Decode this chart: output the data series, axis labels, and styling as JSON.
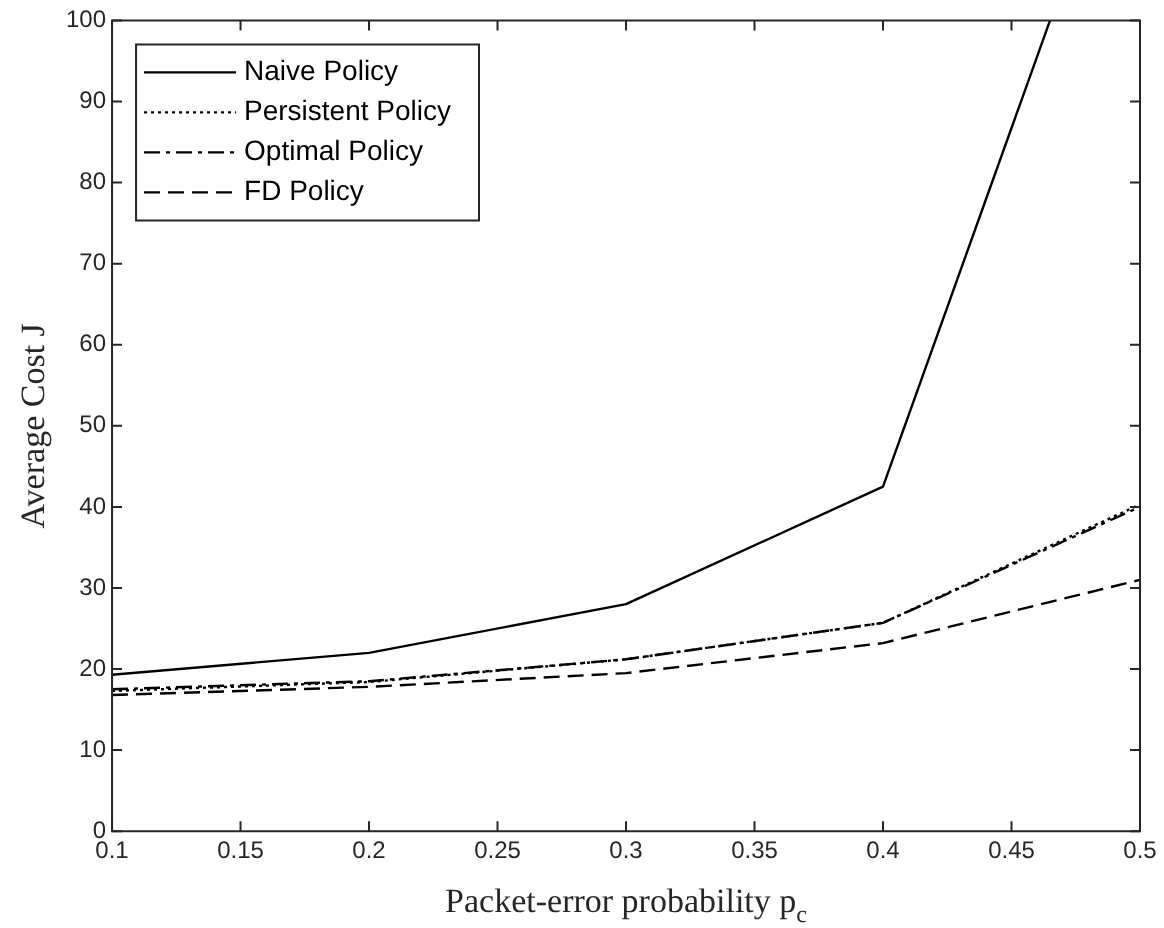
{
  "chart_data": {
    "type": "line",
    "xlabel": "Packet-error probability p$_{c}$",
    "ylabel": "Average Cost J",
    "xlim": [
      0.1,
      0.5
    ],
    "xticks": [
      0.1,
      0.15,
      0.2,
      0.25,
      0.3,
      0.35,
      0.4,
      0.45,
      0.5
    ],
    "ylim": [
      0,
      100
    ],
    "yticks": [
      0,
      10,
      20,
      30,
      40,
      50,
      60,
      70,
      80,
      90,
      100
    ],
    "x": [
      0.1,
      0.2,
      0.3,
      0.4,
      0.5
    ],
    "grid": false,
    "legend": "top left",
    "marker": "none",
    "series": [
      {
        "name": "Naive Policy",
        "color": "#000000",
        "line_style": "solid",
        "x": [
          0.1,
          0.2,
          0.3,
          0.4,
          0.465
        ],
        "values": [
          19.3,
          22,
          28,
          42.5,
          100
        ]
      },
      {
        "name": "Persistent Policy",
        "color": "#000000",
        "line_style": "dotted",
        "values": [
          17.3,
          18.4,
          21.2,
          25.7,
          40.3
        ]
      },
      {
        "name": "Optimal Policy",
        "color": "#000000",
        "line_style": "dashdot",
        "values": [
          17.5,
          18.5,
          21.2,
          25.7,
          40
        ]
      },
      {
        "name": "FD Policy",
        "color": "#000000",
        "line_style": "dashed",
        "values": [
          16.8,
          17.8,
          19.5,
          23.2,
          31
        ]
      }
    ]
  }
}
